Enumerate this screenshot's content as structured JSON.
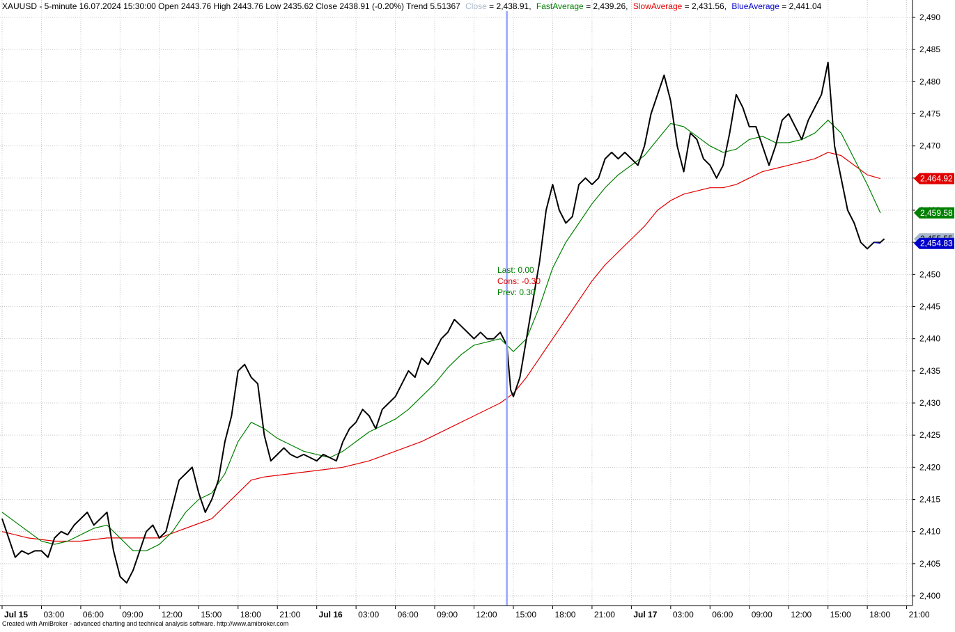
{
  "header": {
    "prefix": "XAUUSD - 5-minute 16.07.2024 15:30:00 Open 2443.76 High 2443.76 Low 2435.62 Close 2438.91 (-0.20%) Trend 5.51367",
    "close_label": "Close",
    "close_value": " = 2,438.91,",
    "fast_label": "FastAverage",
    "fast_value": " = 2,439.26,",
    "slow_label": "SlowAverage",
    "slow_value": " = 2,431.56,",
    "blue_label": "BlueAverage",
    "blue_value": " = 2,441.04"
  },
  "footer": "Created with AmiBroker - advanced charting and technical analysis software. http://www.amibroker.com",
  "annotations": {
    "last": "Last: 0.00",
    "cons": "Cons: -0.30",
    "prev": "Prev: 0.30"
  },
  "colors": {
    "close": "#a9b9cc",
    "fast": "#008000",
    "slow": "#e00000",
    "blue": "#0000cc",
    "cursor": "#9aa8ff",
    "price": "#000000"
  },
  "chart_data": {
    "type": "line",
    "title": "",
    "xlabel": "",
    "ylabel": "",
    "ylim": [
      2400,
      2490
    ],
    "y_ticks": [
      "2,400",
      "2,405",
      "2,410",
      "2,415",
      "2,420",
      "2,425",
      "2,430",
      "2,435",
      "2,440",
      "2,445",
      "2,450",
      "2,455",
      "2,460",
      "2,465",
      "2,470",
      "2,475",
      "2,480",
      "2,485",
      "2,490"
    ],
    "x_ticks": [
      {
        "label": "Jul 15",
        "bold": true,
        "t": 0
      },
      {
        "label": "03:00",
        "bold": false,
        "t": 3
      },
      {
        "label": "06:00",
        "bold": false,
        "t": 6
      },
      {
        "label": "09:00",
        "bold": false,
        "t": 9
      },
      {
        "label": "12:00",
        "bold": false,
        "t": 12
      },
      {
        "label": "15:00",
        "bold": false,
        "t": 15
      },
      {
        "label": "18:00",
        "bold": false,
        "t": 18
      },
      {
        "label": "21:00",
        "bold": false,
        "t": 21
      },
      {
        "label": "Jul 16",
        "bold": true,
        "t": 24
      },
      {
        "label": "03:00",
        "bold": false,
        "t": 27
      },
      {
        "label": "06:00",
        "bold": false,
        "t": 30
      },
      {
        "label": "09:00",
        "bold": false,
        "t": 33
      },
      {
        "label": "12:00",
        "bold": false,
        "t": 36
      },
      {
        "label": "15:00",
        "bold": false,
        "t": 39
      },
      {
        "label": "18:00",
        "bold": false,
        "t": 42
      },
      {
        "label": "21:00",
        "bold": false,
        "t": 45
      },
      {
        "label": "Jul 17",
        "bold": true,
        "t": 48
      },
      {
        "label": "03:00",
        "bold": false,
        "t": 51
      },
      {
        "label": "06:00",
        "bold": false,
        "t": 54
      },
      {
        "label": "09:00",
        "bold": false,
        "t": 57
      },
      {
        "label": "12:00",
        "bold": false,
        "t": 60
      },
      {
        "label": "15:00",
        "bold": false,
        "t": 63
      },
      {
        "label": "18:00",
        "bold": false,
        "t": 66
      },
      {
        "label": "21:00",
        "bold": false,
        "t": 69
      }
    ],
    "cursor_t": 38.5,
    "price_tags": [
      {
        "name": "slow-average-tag",
        "value": 2464.92,
        "label": "2,464.92",
        "bg": "#e00000",
        "fg": "#ffffff"
      },
      {
        "name": "fast-average-tag",
        "value": 2459.58,
        "label": "2,459.58",
        "bg": "#008000",
        "fg": "#ffffff"
      },
      {
        "name": "close-tag",
        "value": 2455.55,
        "label": "2,455.55",
        "bg": "#a9b9cc",
        "fg": "#000000"
      },
      {
        "name": "blue-average-tag",
        "value": 2454.83,
        "label": "2,454.83",
        "bg": "#0000cc",
        "fg": "#ffffff"
      }
    ],
    "series": [
      {
        "name": "Close",
        "color": "#000000",
        "points": [
          [
            0,
            2412
          ],
          [
            0.5,
            2409
          ],
          [
            1,
            2406
          ],
          [
            1.5,
            2407
          ],
          [
            2,
            2406.5
          ],
          [
            2.5,
            2407
          ],
          [
            3,
            2407
          ],
          [
            3.5,
            2406
          ],
          [
            4,
            2409
          ],
          [
            4.5,
            2410
          ],
          [
            5,
            2409.5
          ],
          [
            5.5,
            2411
          ],
          [
            6,
            2412
          ],
          [
            6.5,
            2413
          ],
          [
            7,
            2411
          ],
          [
            7.5,
            2412
          ],
          [
            8,
            2413
          ],
          [
            8.5,
            2407
          ],
          [
            9,
            2403
          ],
          [
            9.5,
            2402
          ],
          [
            10,
            2404
          ],
          [
            10.5,
            2407
          ],
          [
            11,
            2410
          ],
          [
            11.5,
            2411
          ],
          [
            12,
            2409
          ],
          [
            12.5,
            2410
          ],
          [
            13,
            2414
          ],
          [
            13.5,
            2418
          ],
          [
            14,
            2419
          ],
          [
            14.5,
            2420
          ],
          [
            15,
            2416
          ],
          [
            15.5,
            2413
          ],
          [
            16,
            2415
          ],
          [
            16.5,
            2418
          ],
          [
            17,
            2424
          ],
          [
            17.5,
            2428
          ],
          [
            18,
            2435
          ],
          [
            18.5,
            2436
          ],
          [
            19,
            2434
          ],
          [
            19.5,
            2433
          ],
          [
            20,
            2425
          ],
          [
            20.5,
            2421
          ],
          [
            21,
            2422
          ],
          [
            21.5,
            2423
          ],
          [
            22,
            2422
          ],
          [
            22.5,
            2421.5
          ],
          [
            23,
            2422
          ],
          [
            23.5,
            2421.5
          ],
          [
            24,
            2421
          ],
          [
            24.5,
            2422
          ],
          [
            25,
            2421.5
          ],
          [
            25.5,
            2421
          ],
          [
            26,
            2424
          ],
          [
            26.5,
            2426
          ],
          [
            27,
            2427
          ],
          [
            27.5,
            2429
          ],
          [
            28,
            2428
          ],
          [
            28.5,
            2426
          ],
          [
            29,
            2429
          ],
          [
            29.5,
            2430
          ],
          [
            30,
            2431
          ],
          [
            30.5,
            2433
          ],
          [
            31,
            2435
          ],
          [
            31.5,
            2434
          ],
          [
            32,
            2437
          ],
          [
            32.5,
            2436
          ],
          [
            33,
            2438
          ],
          [
            33.5,
            2440
          ],
          [
            34,
            2441
          ],
          [
            34.5,
            2443
          ],
          [
            35,
            2442
          ],
          [
            35.5,
            2441
          ],
          [
            36,
            2440
          ],
          [
            36.5,
            2441
          ],
          [
            37,
            2440
          ],
          [
            37.5,
            2440
          ],
          [
            38,
            2441
          ],
          [
            38.5,
            2439
          ],
          [
            38.8,
            2432
          ],
          [
            39,
            2431
          ],
          [
            39.5,
            2434
          ],
          [
            40,
            2440
          ],
          [
            40.5,
            2446
          ],
          [
            41,
            2452
          ],
          [
            41.5,
            2460
          ],
          [
            42,
            2464
          ],
          [
            42.5,
            2460
          ],
          [
            43,
            2458
          ],
          [
            43.5,
            2459
          ],
          [
            44,
            2464
          ],
          [
            44.5,
            2465
          ],
          [
            45,
            2464
          ],
          [
            45.5,
            2465
          ],
          [
            46,
            2468
          ],
          [
            46.5,
            2469
          ],
          [
            47,
            2468
          ],
          [
            47.5,
            2469
          ],
          [
            48,
            2468
          ],
          [
            48.5,
            2467
          ],
          [
            49,
            2470
          ],
          [
            49.5,
            2475
          ],
          [
            50,
            2478
          ],
          [
            50.5,
            2481
          ],
          [
            51,
            2477
          ],
          [
            51.5,
            2470
          ],
          [
            52,
            2466
          ],
          [
            52.5,
            2472
          ],
          [
            53,
            2471
          ],
          [
            53.5,
            2468
          ],
          [
            54,
            2467
          ],
          [
            54.5,
            2465
          ],
          [
            55,
            2467
          ],
          [
            55.5,
            2472
          ],
          [
            56,
            2478
          ],
          [
            56.5,
            2476
          ],
          [
            57,
            2473
          ],
          [
            57.5,
            2473
          ],
          [
            58,
            2470
          ],
          [
            58.5,
            2467
          ],
          [
            59,
            2470
          ],
          [
            59.5,
            2474
          ],
          [
            60,
            2475
          ],
          [
            60.5,
            2473
          ],
          [
            61,
            2471
          ],
          [
            61.5,
            2474
          ],
          [
            62,
            2476
          ],
          [
            62.5,
            2478
          ],
          [
            63,
            2483
          ],
          [
            63.5,
            2470
          ],
          [
            64,
            2465
          ],
          [
            64.5,
            2460
          ],
          [
            65,
            2458
          ],
          [
            65.5,
            2455
          ],
          [
            66,
            2454
          ],
          [
            66.5,
            2455
          ],
          [
            67,
            2455
          ],
          [
            67.3,
            2455.55
          ]
        ]
      },
      {
        "name": "FastAverage",
        "color": "#008000",
        "points": [
          [
            0,
            2413
          ],
          [
            1,
            2411.5
          ],
          [
            2,
            2410
          ],
          [
            3,
            2408.5
          ],
          [
            4,
            2408
          ],
          [
            5,
            2408.5
          ],
          [
            6,
            2409.5
          ],
          [
            7,
            2410.5
          ],
          [
            8,
            2411
          ],
          [
            9,
            2409
          ],
          [
            10,
            2407
          ],
          [
            11,
            2407
          ],
          [
            12,
            2408
          ],
          [
            13,
            2410
          ],
          [
            14,
            2413
          ],
          [
            15,
            2415
          ],
          [
            16,
            2416
          ],
          [
            17,
            2419
          ],
          [
            18,
            2424
          ],
          [
            19,
            2427
          ],
          [
            20,
            2426
          ],
          [
            21,
            2424.5
          ],
          [
            22,
            2423.5
          ],
          [
            23,
            2422.5
          ],
          [
            24,
            2422
          ],
          [
            25,
            2421.5
          ],
          [
            26,
            2422.5
          ],
          [
            27,
            2424
          ],
          [
            28,
            2425.5
          ],
          [
            29,
            2426.5
          ],
          [
            30,
            2427.5
          ],
          [
            31,
            2429
          ],
          [
            32,
            2431
          ],
          [
            33,
            2433
          ],
          [
            34,
            2435.5
          ],
          [
            35,
            2437.5
          ],
          [
            36,
            2439
          ],
          [
            37,
            2439.5
          ],
          [
            38,
            2440
          ],
          [
            39,
            2438
          ],
          [
            40,
            2440
          ],
          [
            41,
            2445
          ],
          [
            42,
            2451
          ],
          [
            43,
            2455
          ],
          [
            44,
            2458
          ],
          [
            45,
            2461
          ],
          [
            46,
            2463.5
          ],
          [
            47,
            2465.5
          ],
          [
            48,
            2467
          ],
          [
            49,
            2468.5
          ],
          [
            50,
            2471
          ],
          [
            51,
            2473.5
          ],
          [
            52,
            2473
          ],
          [
            53,
            2471.5
          ],
          [
            54,
            2470
          ],
          [
            55,
            2469
          ],
          [
            56,
            2469.5
          ],
          [
            57,
            2471
          ],
          [
            58,
            2471.5
          ],
          [
            59,
            2470.5
          ],
          [
            60,
            2470.5
          ],
          [
            61,
            2471
          ],
          [
            62,
            2472
          ],
          [
            63,
            2474
          ],
          [
            64,
            2472
          ],
          [
            65,
            2468
          ],
          [
            66,
            2464
          ],
          [
            67,
            2459.58
          ]
        ]
      },
      {
        "name": "SlowAverage",
        "color": "#e00000",
        "points": [
          [
            0,
            2410
          ],
          [
            2,
            2409
          ],
          [
            4,
            2408.5
          ],
          [
            6,
            2408.5
          ],
          [
            8,
            2409
          ],
          [
            10,
            2409
          ],
          [
            12,
            2409
          ],
          [
            14,
            2410.5
          ],
          [
            16,
            2412
          ],
          [
            18,
            2416
          ],
          [
            19,
            2418
          ],
          [
            20,
            2418.5
          ],
          [
            22,
            2419
          ],
          [
            24,
            2419.5
          ],
          [
            26,
            2420
          ],
          [
            28,
            2421
          ],
          [
            30,
            2422.5
          ],
          [
            32,
            2424
          ],
          [
            34,
            2426
          ],
          [
            36,
            2428
          ],
          [
            38,
            2430
          ],
          [
            39,
            2431.5
          ],
          [
            40,
            2434
          ],
          [
            41,
            2437
          ],
          [
            42,
            2440
          ],
          [
            43,
            2443
          ],
          [
            44,
            2446
          ],
          [
            45,
            2449
          ],
          [
            46,
            2451.5
          ],
          [
            47,
            2453.5
          ],
          [
            48,
            2455.5
          ],
          [
            49,
            2457.5
          ],
          [
            50,
            2460
          ],
          [
            51,
            2461.5
          ],
          [
            52,
            2462.5
          ],
          [
            53,
            2463
          ],
          [
            54,
            2463.5
          ],
          [
            55,
            2463.5
          ],
          [
            56,
            2464
          ],
          [
            57,
            2465
          ],
          [
            58,
            2466
          ],
          [
            59,
            2466.5
          ],
          [
            60,
            2467
          ],
          [
            61,
            2467.5
          ],
          [
            62,
            2468
          ],
          [
            63,
            2469
          ],
          [
            64,
            2468.5
          ],
          [
            65,
            2467
          ],
          [
            66,
            2465.5
          ],
          [
            67,
            2464.92
          ]
        ]
      },
      {
        "name": "BlueAverage",
        "color": "#0000cc",
        "points": [
          [
            66.5,
            2455
          ],
          [
            67,
            2454.83
          ]
        ]
      }
    ]
  }
}
